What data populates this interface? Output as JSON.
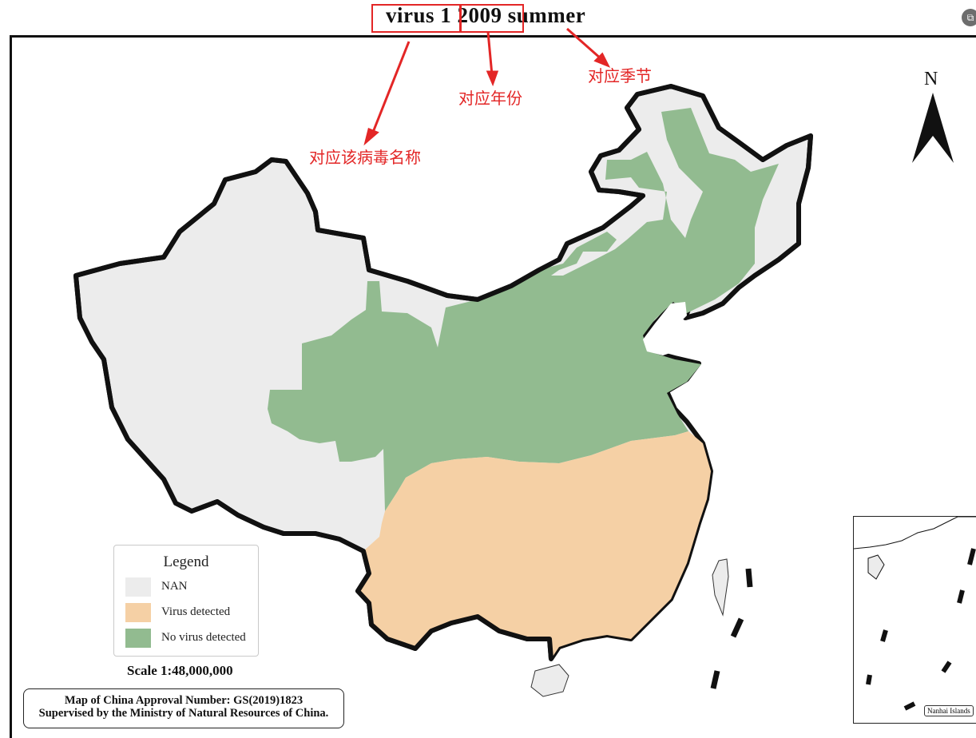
{
  "title": {
    "virus": "virus 1",
    "year": "2009",
    "season": "summer"
  },
  "annotations": {
    "virus_name": "对应该病毒名称",
    "year": "对应年份",
    "season": "对应季节"
  },
  "legend": {
    "title": "Legend",
    "items": [
      {
        "label": "NAN",
        "color": "#ececec"
      },
      {
        "label": "Virus detected",
        "color": "#f5d0a5"
      },
      {
        "label": "No virus detected",
        "color": "#92bb90"
      }
    ]
  },
  "scale": "Scale 1:48,000,000",
  "approval": {
    "line1": "Map of China Approval Number: GS(2019)1823",
    "line2": "Supervised by the Ministry of Natural Resources of China."
  },
  "north_arrow": "N",
  "inset_label": "Nanhai Islands",
  "colors": {
    "annotation": "#e32626",
    "border": "#111111"
  }
}
